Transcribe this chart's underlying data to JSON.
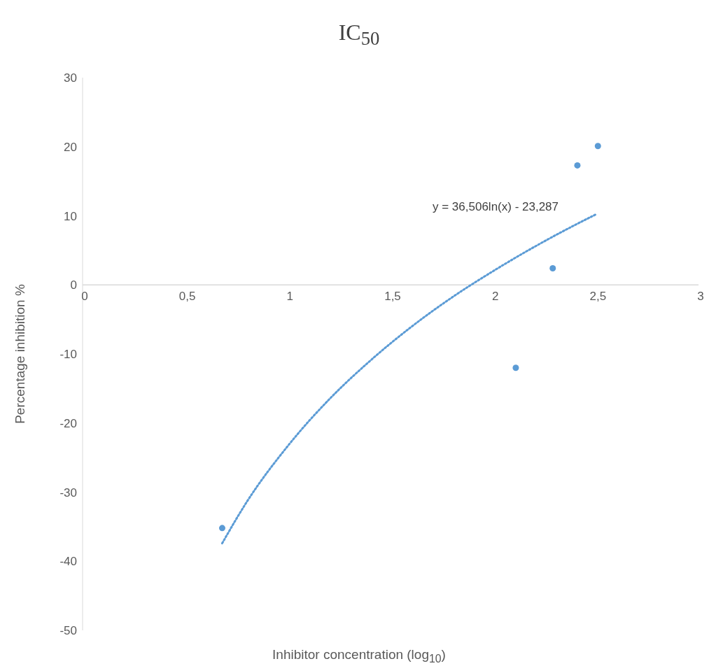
{
  "chart_data": {
    "type": "scatter",
    "title": "IC$_{50}$",
    "xlabel": "Inhibitor concentration (log$_{10}$)",
    "ylabel": "Percentage inhibition %",
    "xlim": [
      0,
      3
    ],
    "xticks": [
      0,
      {
        "value": 0.5,
        "label": "0,5"
      },
      1,
      {
        "value": 1.5,
        "label": "1,5"
      },
      2,
      {
        "value": 2.5,
        "label": "2,5"
      },
      3
    ],
    "ylim": [
      -50,
      30
    ],
    "yticks": [
      -50,
      -40,
      -30,
      -20,
      -10,
      0,
      10,
      20,
      30
    ],
    "grid": false,
    "series": [
      {
        "color": "#5b9bd5",
        "marker": "circle",
        "x": [
          0.68,
          2.11,
          2.29,
          2.41,
          2.51
        ],
        "values": [
          -35.2,
          -12,
          2.4,
          17.3,
          20.1
        ]
      },
      {
        "type": "line",
        "color": "#5b9bd5",
        "line_style": "dotted",
        "x": [
          0.68,
          0.8,
          1.0,
          1.2,
          1.4,
          1.6,
          1.8,
          2.0,
          2.2,
          2.4,
          2.5
        ],
        "values": [
          -37.4,
          -31.4,
          -23.3,
          -16.6,
          -11.0,
          -6.1,
          -1.8,
          2.0,
          5.5,
          8.7,
          10.2
        ]
      }
    ],
    "annotations": [
      "y = 36,506ln(x) - 23,287"
    ]
  }
}
